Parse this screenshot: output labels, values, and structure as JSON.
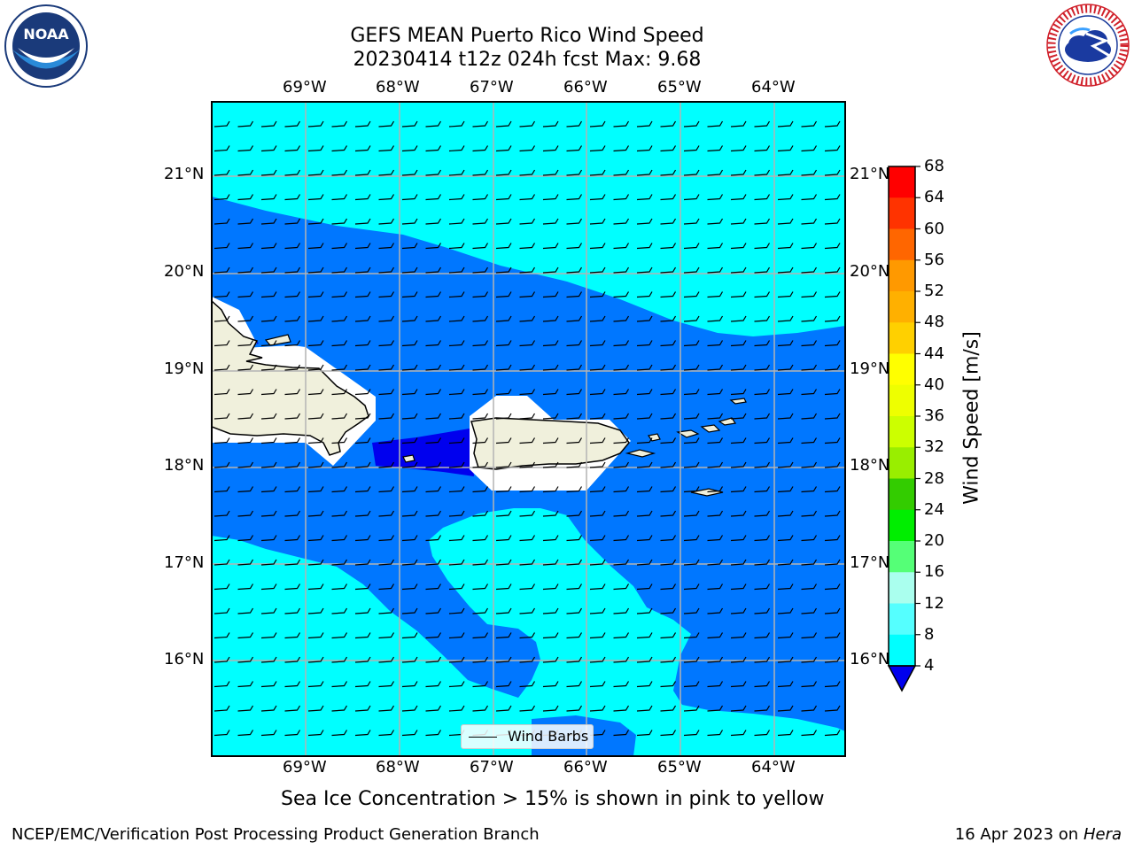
{
  "title_line1": "GEFS MEAN Puerto Rico Wind Speed",
  "title_line2": "20230414 t12z 024h fcst   Max: 9.68",
  "lon_labels": [
    "69°W",
    "68°W",
    "67°W",
    "66°W",
    "65°W",
    "64°W"
  ],
  "lat_labels": [
    "21°N",
    "20°N",
    "19°N",
    "18°N",
    "17°N",
    "16°N"
  ],
  "legend_label": "Wind Barbs",
  "colorbar": {
    "label": "Wind Speed [m/s]",
    "ticks": [
      "68",
      "64",
      "60",
      "56",
      "52",
      "48",
      "44",
      "40",
      "36",
      "32",
      "28",
      "24",
      "20",
      "16",
      "12",
      "8",
      "4"
    ],
    "colors": [
      "#ff0000",
      "#ff3300",
      "#ff6600",
      "#ff9900",
      "#ffb000",
      "#ffd000",
      "#ffff00",
      "#eeff00",
      "#ccff00",
      "#99ee00",
      "#33cc00",
      "#00ee00",
      "#55ff77",
      "#aaffee",
      "#55ffff",
      "#00ffff",
      "#0077ff"
    ]
  },
  "footer_note": "Sea Ice Concentration > 15% is shown in pink to yellow",
  "footer_left": "NCEP/EMC/Verification Post Processing Product Generation Branch",
  "footer_right_date": "16 Apr 2023 on ",
  "footer_right_host": "Hera",
  "logos": {
    "left": "NOAA",
    "right": "NATIONAL WEATHER SERVICE"
  },
  "fill_colors": {
    "light": "#00ffff",
    "medium": "#0077ff",
    "dark": "#0000ee",
    "land": "#f0f0dc"
  }
}
